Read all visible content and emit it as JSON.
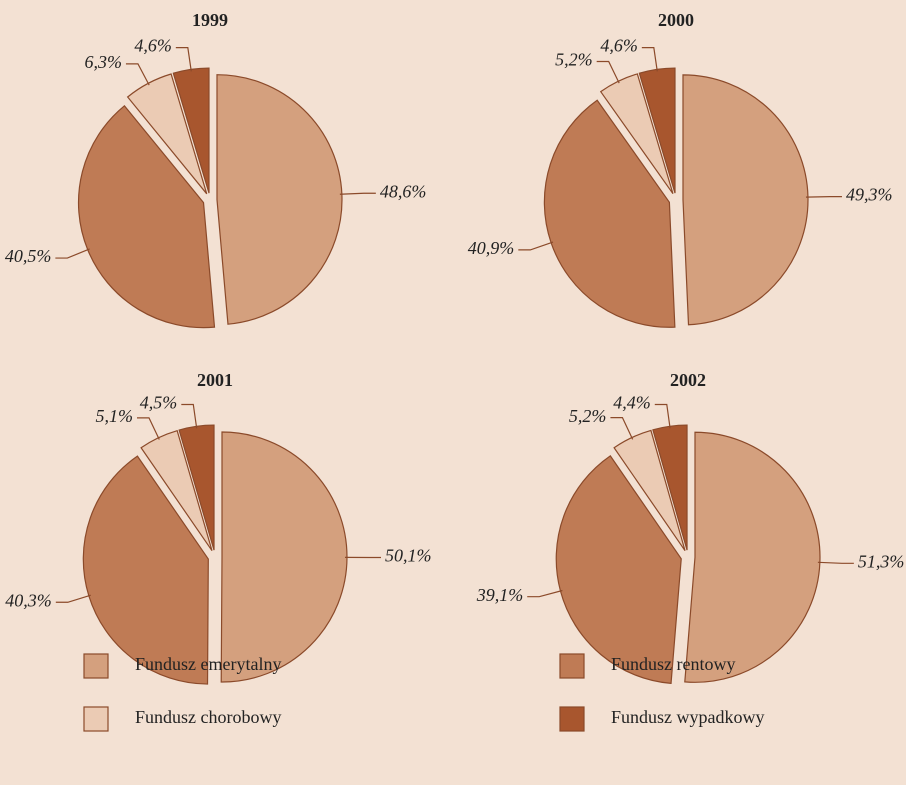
{
  "chart_data": {
    "type": "pie",
    "categories": [
      "Fundusz emerytalny",
      "Fundusz rentowy",
      "Fundusz chorobowy",
      "Fundusz wypadkowy"
    ],
    "colors": [
      "#d4a07e",
      "#bf7b55",
      "#ebcbb4",
      "#a8562e"
    ],
    "series": [
      {
        "name": "1999",
        "values": [
          48.6,
          40.5,
          6.3,
          4.6
        ],
        "value_labels": [
          "48,6%",
          "40,5%",
          "6,3%",
          "4,6%"
        ]
      },
      {
        "name": "2000",
        "values": [
          49.3,
          40.9,
          5.2,
          4.6
        ],
        "value_labels": [
          "49,3%",
          "40,9%",
          "5,2%",
          "4,6%"
        ]
      },
      {
        "name": "2001",
        "values": [
          50.1,
          40.3,
          5.1,
          4.5
        ],
        "value_labels": [
          "50,1%",
          "40,3%",
          "5,1%",
          "4,5%"
        ]
      },
      {
        "name": "2002",
        "values": [
          51.3,
          39.1,
          5.2,
          4.4
        ],
        "value_labels": [
          "51,3%",
          "39,1%",
          "5,2%",
          "4,4%"
        ]
      }
    ]
  }
}
